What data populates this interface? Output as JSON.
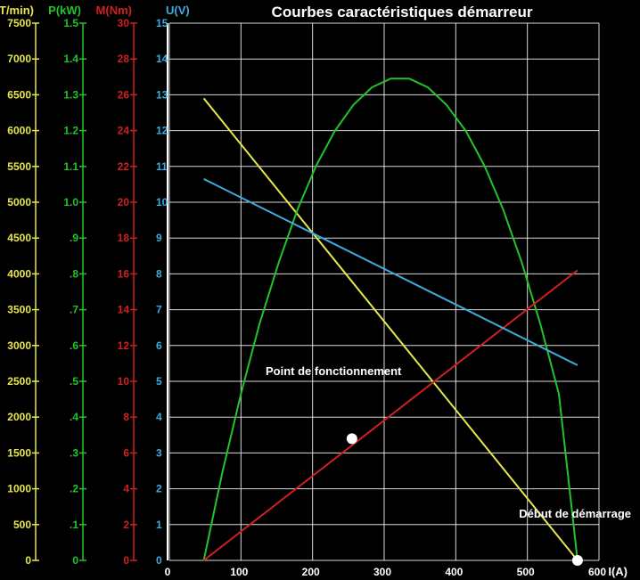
{
  "chart_data": {
    "type": "line",
    "title": "Courbes caractéristiques démarreur",
    "xlabel": "I(A)",
    "xlim": [
      0,
      600
    ],
    "x_ticks": [
      "0",
      "100",
      "200",
      "300",
      "400",
      "500",
      "600"
    ],
    "grid": true,
    "axes": [
      {
        "label": "n(T/min)",
        "color": "#e8e84a",
        "min": 0,
        "max": 7500,
        "ticks": [
          "0",
          "500",
          "1000",
          "1500",
          "2000",
          "2500",
          "3000",
          "3500",
          "4000",
          "4500",
          "5000",
          "5500",
          "6000",
          "6500",
          "7000",
          "7500"
        ]
      },
      {
        "label": "P(kW)",
        "color": "#22c42a",
        "min": 0,
        "max": 1.5,
        "ticks": [
          "0",
          ".1",
          ".2",
          ".3",
          ".4",
          ".5",
          ".6",
          ".7",
          ".8",
          ".9",
          "1.0",
          "1.1",
          "1.2",
          "1.3",
          "1.4",
          "1.5"
        ]
      },
      {
        "label": "M(Nm)",
        "color": "#d02020",
        "min": 0,
        "max": 30,
        "ticks": [
          "0",
          "2",
          "4",
          "6",
          "8",
          "10",
          "12",
          "14",
          "16",
          "18",
          "20",
          "22",
          "24",
          "26",
          "28",
          "30"
        ]
      },
      {
        "label": "U(V)",
        "color": "#3aaee0",
        "min": 0,
        "max": 15,
        "ticks": [
          "0",
          "1",
          "2",
          "3",
          "4",
          "5",
          "6",
          "7",
          "8",
          "9",
          "10",
          "11",
          "12",
          "13",
          "14",
          "15"
        ]
      }
    ],
    "series": [
      {
        "axis": 0,
        "color": "#e8e84a",
        "x": [
          48,
          570
        ],
        "y": [
          6450,
          0
        ]
      },
      {
        "axis": 1,
        "color": "#22c42a",
        "x": [
          48,
          74,
          100,
          126,
          153,
          179,
          205,
          231,
          257,
          283,
          309,
          335,
          361,
          387,
          414,
          440,
          466,
          492,
          518,
          544,
          570
        ],
        "y": [
          0,
          0.245,
          0.465,
          0.661,
          0.833,
          0.98,
          1.102,
          1.199,
          1.272,
          1.321,
          1.345,
          1.345,
          1.321,
          1.272,
          1.199,
          1.102,
          0.98,
          0.833,
          0.661,
          0.465,
          0
        ]
      },
      {
        "axis": 2,
        "color": "#d02020",
        "x": [
          48,
          570
        ],
        "y": [
          0,
          16.2
        ]
      },
      {
        "axis": 3,
        "color": "#3aaee0",
        "x": [
          48,
          570
        ],
        "y": [
          10.65,
          5.45
        ]
      }
    ],
    "points": [
      {
        "x": 255,
        "y": 6.8,
        "axis": 2,
        "label": "Point de fonctionnement"
      },
      {
        "x": 570,
        "y": 0,
        "axis": 2,
        "label": "Début de démarrage"
      }
    ]
  }
}
